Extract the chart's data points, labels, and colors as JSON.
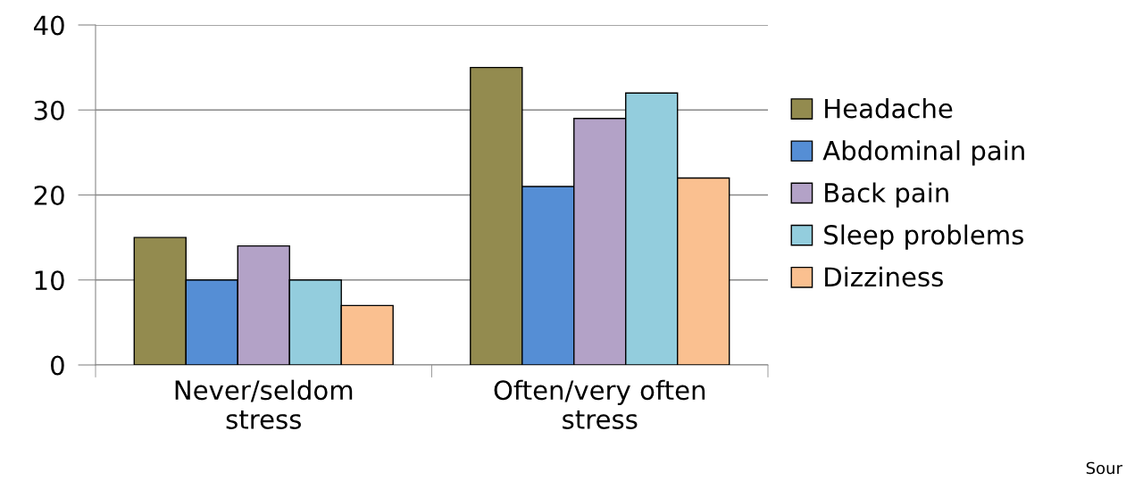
{
  "chart_data": {
    "type": "bar",
    "categories": [
      "Never/seldom\nstress",
      "Often/very often\nstress"
    ],
    "series": [
      {
        "name": "Headache",
        "color": "#938b4f",
        "values": [
          15,
          35
        ]
      },
      {
        "name": "Abdominal pain",
        "color": "#558ed5",
        "values": [
          10,
          21
        ]
      },
      {
        "name": "Back pain",
        "color": "#b3a2c7",
        "values": [
          14,
          29
        ]
      },
      {
        "name": "Sleep problems",
        "color": "#93cddd",
        "values": [
          10,
          32
        ]
      },
      {
        "name": "Dizziness",
        "color": "#fac090",
        "values": [
          7,
          22
        ]
      }
    ],
    "ylim": [
      0,
      40
    ],
    "yticks": [
      0,
      10,
      20,
      30,
      40
    ],
    "grid": "y",
    "legend": "right",
    "annotations": [
      "Sour"
    ]
  }
}
